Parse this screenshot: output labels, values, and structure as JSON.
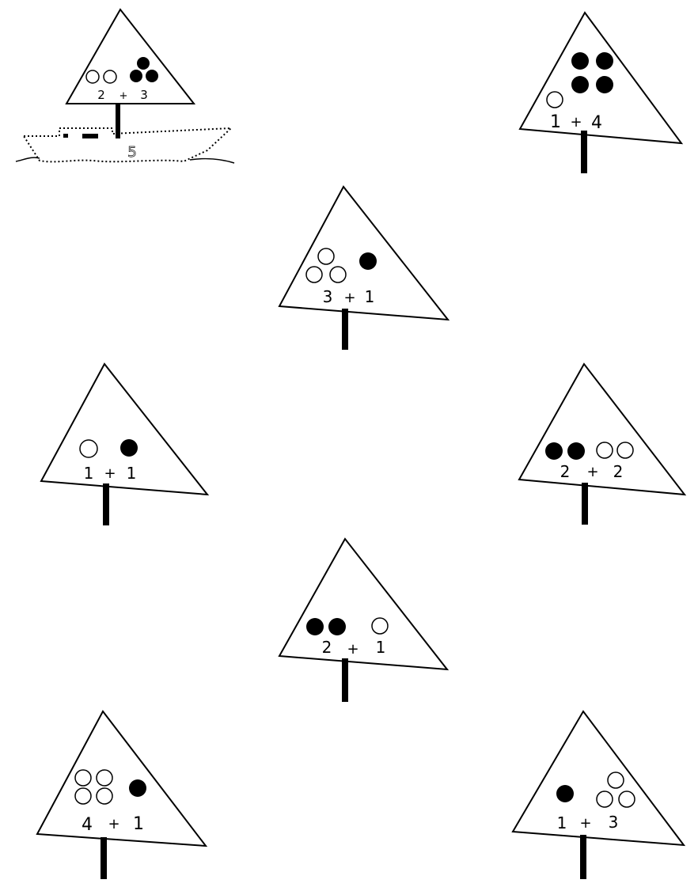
{
  "worksheet": {
    "ink_color": "#000000",
    "paper_color": "#ffffff",
    "plus_sign": "+",
    "sails": [
      {
        "id": "sail-1",
        "left_value": "2",
        "right_value": "3",
        "left_dots": "open",
        "right_dots": "filled",
        "has_boat": true,
        "boat_answer": "5"
      },
      {
        "id": "sail-2",
        "left_value": "1",
        "right_value": "4",
        "left_dots": "open",
        "right_dots": "filled"
      },
      {
        "id": "sail-3",
        "left_value": "3",
        "right_value": "1",
        "left_dots": "open",
        "right_dots": "filled"
      },
      {
        "id": "sail-4",
        "left_value": "1",
        "right_value": "1",
        "left_dots": "open",
        "right_dots": "filled"
      },
      {
        "id": "sail-5",
        "left_value": "2",
        "right_value": "2",
        "left_dots": "filled",
        "right_dots": "open"
      },
      {
        "id": "sail-6",
        "left_value": "2",
        "right_value": "1",
        "left_dots": "filled",
        "right_dots": "open"
      },
      {
        "id": "sail-7",
        "left_value": "4",
        "right_value": "1",
        "left_dots": "open",
        "right_dots": "filled"
      },
      {
        "id": "sail-8",
        "left_value": "1",
        "right_value": "3",
        "left_dots": "filled",
        "right_dots": "open"
      }
    ]
  }
}
